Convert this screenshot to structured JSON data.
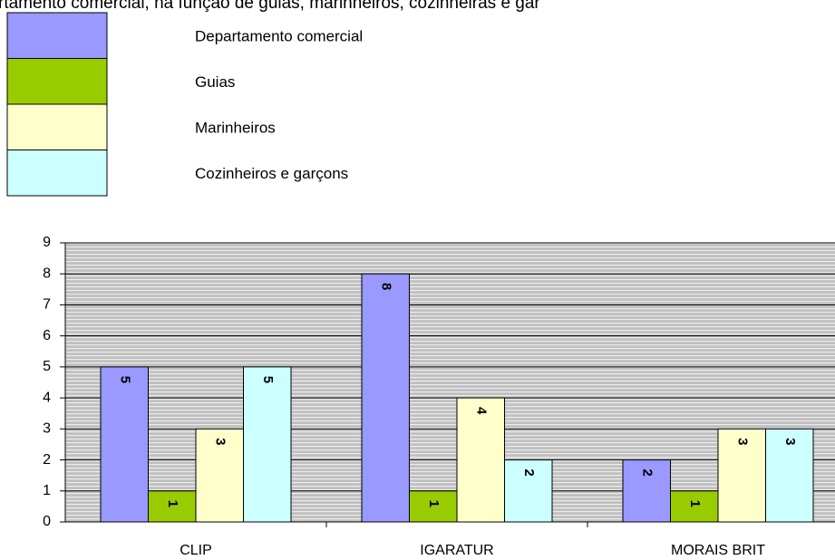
{
  "chart_data": {
    "type": "bar",
    "title": "rtamento comercial, na função de guias, marinheiros, cozinheiras e gar",
    "categories": [
      "CLIP",
      "IGARATUR",
      "MORAIS BRIT"
    ],
    "series": [
      {
        "name": "Departamento comercial",
        "color": "#9999ff",
        "values": [
          5,
          8,
          2
        ]
      },
      {
        "name": "Guias",
        "color": "#99cc00",
        "values": [
          1,
          1,
          1
        ]
      },
      {
        "name": "Marinheiros",
        "color": "#ffffcc",
        "values": [
          3,
          4,
          3
        ]
      },
      {
        "name": "Cozinheiros e garçons",
        "color": "#ccffff",
        "values": [
          5,
          2,
          3
        ]
      }
    ],
    "ylim": [
      0,
      9
    ],
    "yticks": [
      0,
      1,
      2,
      3,
      4,
      5,
      6,
      7,
      8,
      9
    ],
    "grid": true,
    "legend": "top-left"
  }
}
